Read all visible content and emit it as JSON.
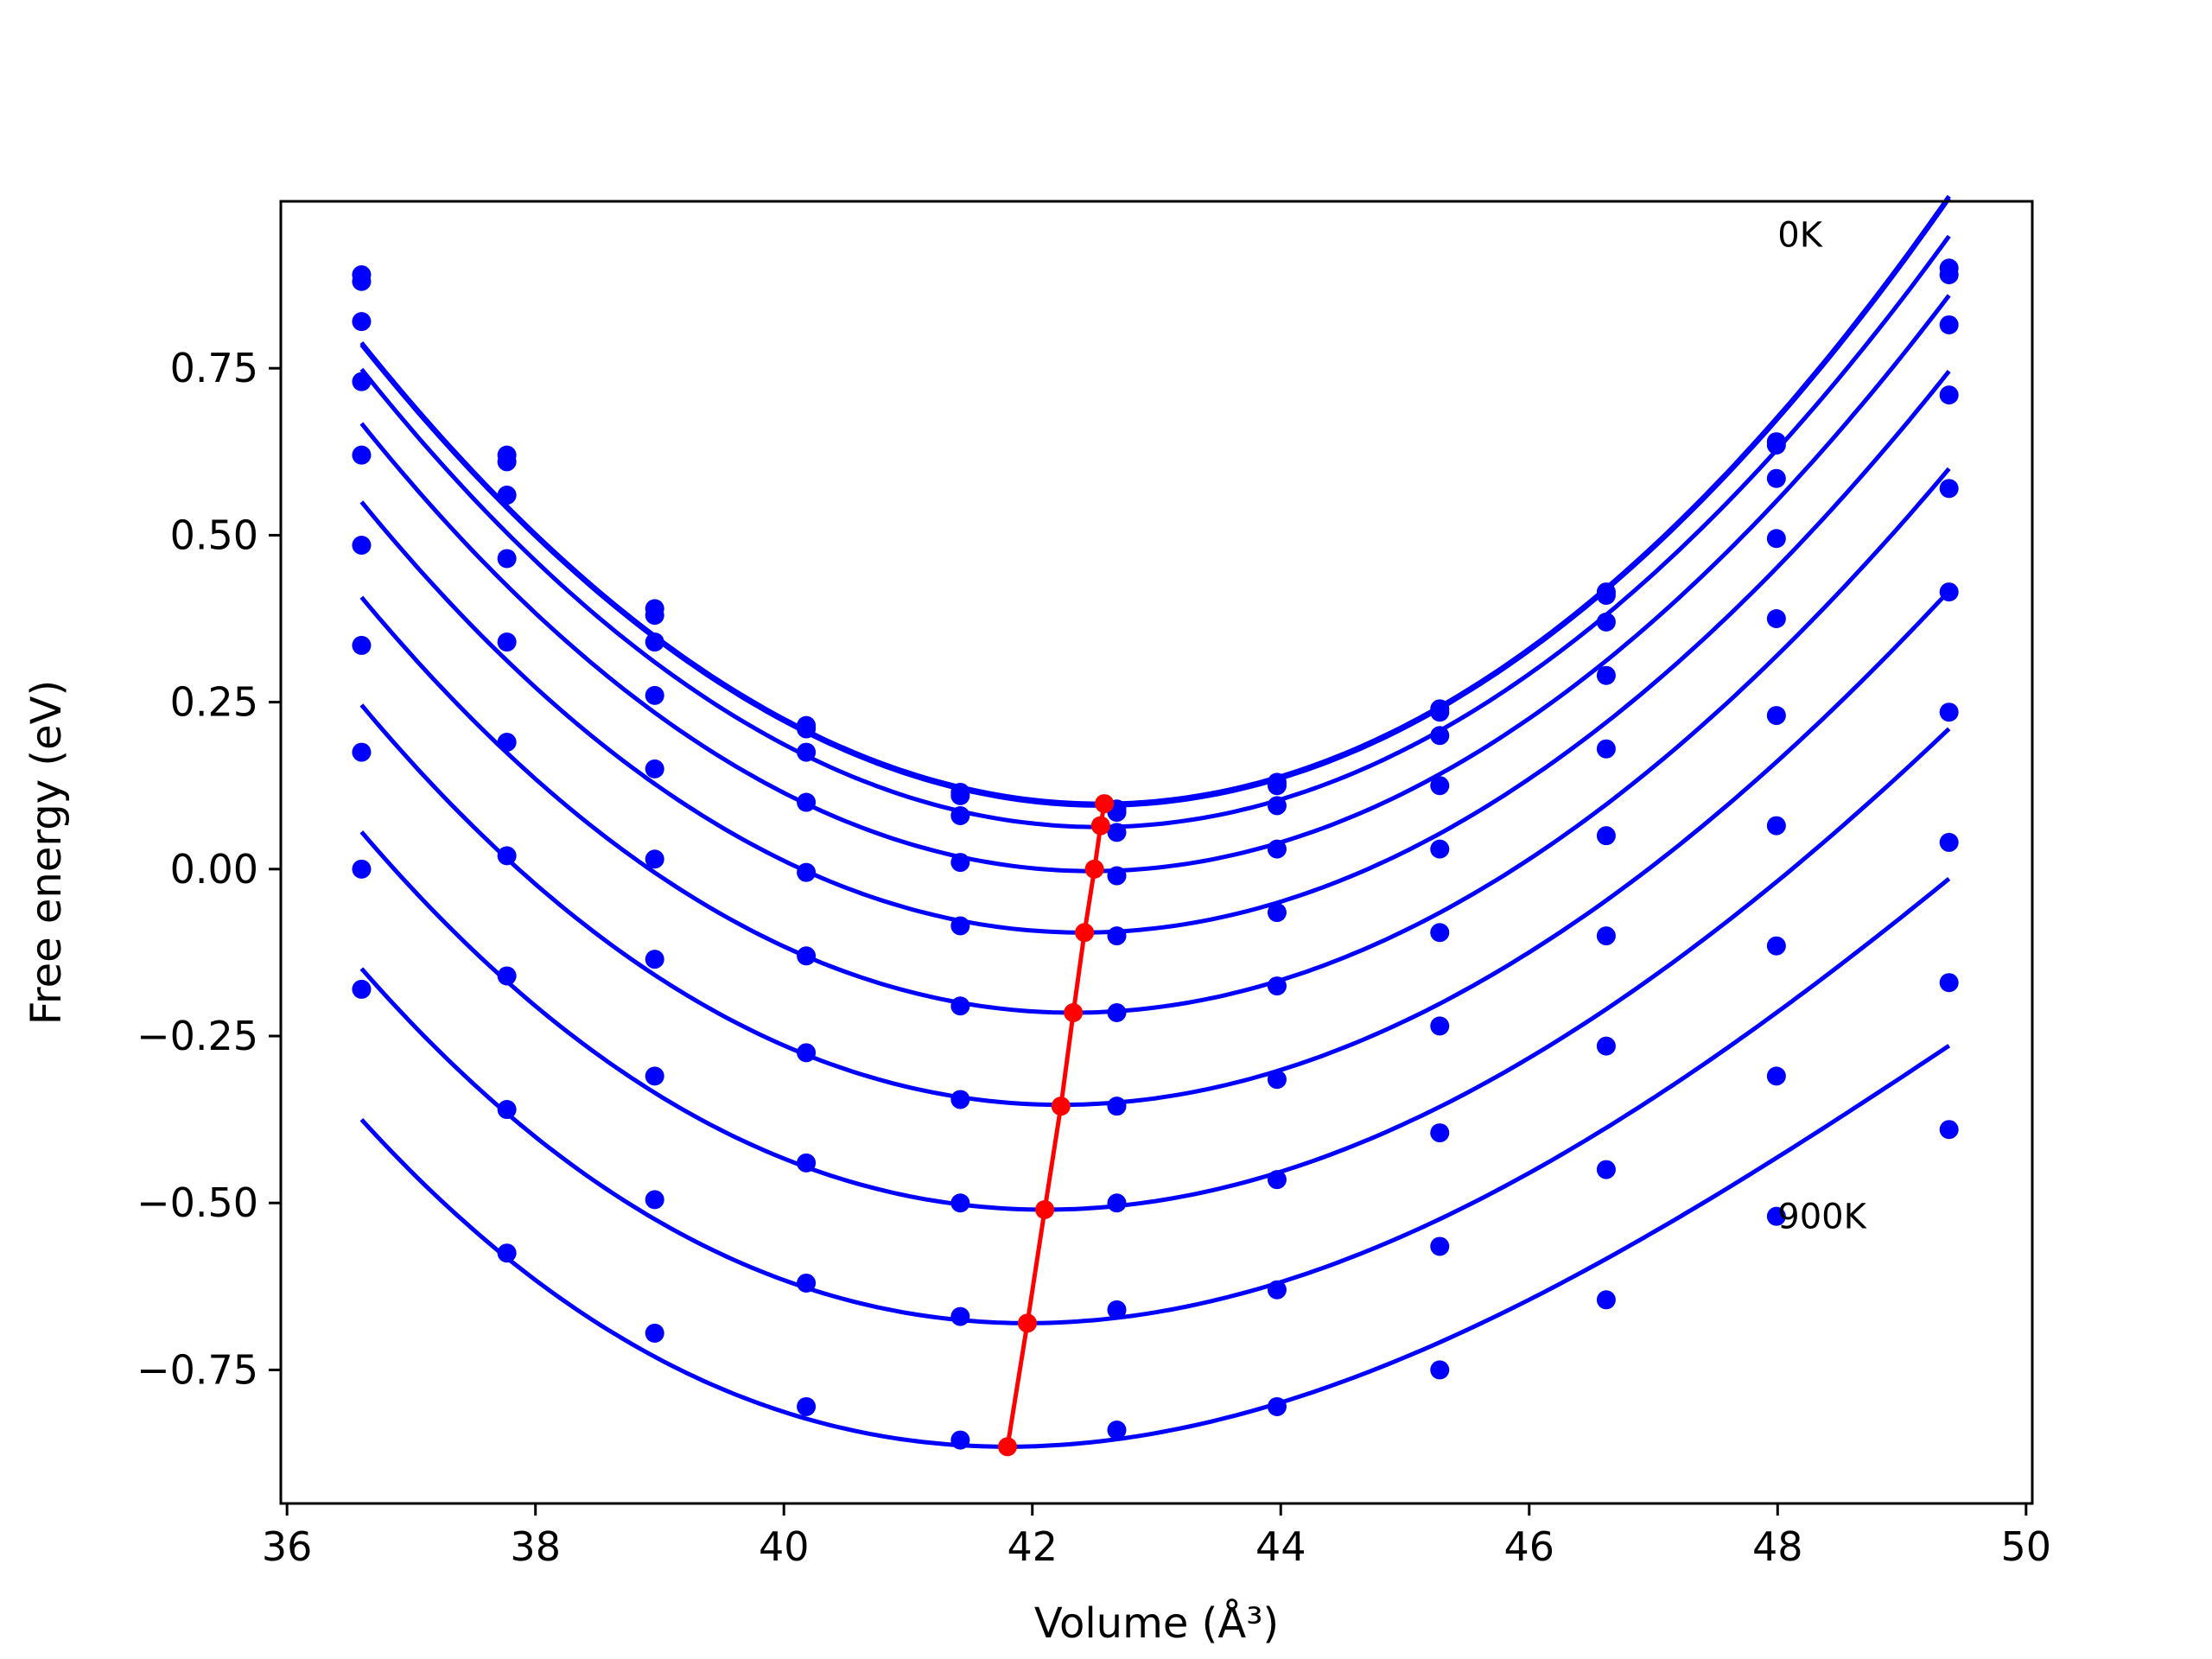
{
  "chart_data": {
    "type": "line",
    "title": "",
    "xlabel": "Volume (Å³)",
    "ylabel": "Free energy (eV)",
    "xlim": [
      35.95,
      50.05
    ],
    "ylim": [
      -0.95,
      1.0
    ],
    "xticks": [
      36,
      38,
      40,
      42,
      44,
      46,
      48,
      50
    ],
    "xtick_labels": [
      "36",
      "38",
      "40",
      "42",
      "44",
      "46",
      "48",
      "50"
    ],
    "yticks": [
      -0.75,
      -0.5,
      -0.25,
      0.0,
      0.25,
      0.5,
      0.75
    ],
    "ytick_labels": [
      "−0.75",
      "−0.50",
      "−0.25",
      "0.00",
      "0.25",
      "0.50",
      "0.75"
    ],
    "grid": false,
    "annotations": [
      {
        "text": "0K",
        "x": 48.0,
        "y": 0.95
      },
      {
        "text": "900K",
        "x": 48.0,
        "y": -0.52
      }
    ],
    "volumes": [
      36.6,
      37.77,
      38.96,
      40.18,
      41.42,
      42.68,
      43.97,
      45.28,
      46.62,
      47.99,
      49.38
    ],
    "series": [
      {
        "values": [
          0.89,
          0.62,
          0.39,
          0.215,
          0.115,
          0.09,
          0.13,
          0.24,
          0.415,
          0.64,
          0.9
        ],
        "fit": {
          "v0": 42.55,
          "f0": 0.098,
          "a": 0.0195,
          "b": 0.0,
          "c": 0.0
        }
      },
      {
        "values": [
          0.88,
          0.61,
          0.38,
          0.21,
          0.11,
          0.085,
          0.125,
          0.235,
          0.41,
          0.635,
          0.89
        ],
        "fit": {
          "v0": 42.55,
          "f0": 0.095,
          "a": 0.0195,
          "b": 0.0,
          "c": 0.0
        }
      },
      {
        "values": [
          0.82,
          0.56,
          0.34,
          0.175,
          0.08,
          0.055,
          0.095,
          0.2,
          0.37,
          0.585,
          0.815
        ],
        "fit": {
          "v0": 42.53,
          "f0": 0.063,
          "a": 0.0192,
          "b": -5e-05,
          "c": 0.0
        }
      },
      {
        "values": [
          0.73,
          0.465,
          0.26,
          0.1,
          0.01,
          -0.01,
          0.03,
          0.125,
          0.29,
          0.495,
          0.71
        ],
        "fit": {
          "v0": 42.48,
          "f0": -0.003,
          "a": 0.0188,
          "b": -0.0001,
          "c": 0.0
        }
      },
      {
        "values": [
          0.62,
          0.34,
          0.15,
          -0.005,
          -0.085,
          -0.1,
          -0.065,
          0.03,
          0.18,
          0.375,
          0.57
        ],
        "fit": {
          "v0": 42.4,
          "f0": -0.095,
          "a": 0.0183,
          "b": -0.00015,
          "c": 0.0
        }
      },
      {
        "values": [
          0.485,
          0.19,
          0.015,
          -0.13,
          -0.205,
          -0.215,
          -0.175,
          -0.095,
          0.05,
          0.23,
          0.415
        ],
        "fit": {
          "v0": 42.33,
          "f0": -0.215,
          "a": 0.0178,
          "b": -0.0002,
          "c": 0.0
        }
      },
      {
        "values": [
          0.335,
          0.02,
          -0.135,
          -0.275,
          -0.345,
          -0.355,
          -0.315,
          -0.235,
          -0.1,
          0.065,
          0.235
        ],
        "fit": {
          "v0": 42.23,
          "f0": -0.353,
          "a": 0.0172,
          "b": -0.0003,
          "c": 0.0
        }
      },
      {
        "values": [
          0.175,
          -0.16,
          -0.31,
          -0.44,
          -0.5,
          -0.5,
          -0.465,
          -0.395,
          -0.265,
          -0.115,
          0.04
        ],
        "fit": {
          "v0": 42.1,
          "f0": -0.51,
          "a": 0.0165,
          "b": -0.0004,
          "c": 0.0
        }
      },
      {
        "values": [
          0.0,
          -0.36,
          -0.495,
          -0.62,
          -0.67,
          -0.66,
          -0.63,
          -0.565,
          -0.45,
          -0.31,
          -0.17
        ],
        "fit": {
          "v0": 41.96,
          "f0": -0.68,
          "a": 0.0158,
          "b": -0.0005,
          "c": 0.0
        }
      },
      {
        "values": [
          -0.18,
          -0.575,
          -0.695,
          -0.805,
          -0.855,
          -0.84,
          -0.805,
          -0.75,
          -0.645,
          -0.52,
          -0.39
        ],
        "fit": {
          "v0": 41.8,
          "f0": -0.865,
          "a": 0.015,
          "b": -0.0006,
          "c": 0.0
        }
      }
    ],
    "minima": {
      "x": [
        42.58,
        42.55,
        42.5,
        42.42,
        42.33,
        42.23,
        42.1,
        41.96,
        41.8
      ],
      "y": [
        0.098,
        0.065,
        0.0,
        -0.095,
        -0.215,
        -0.355,
        -0.51,
        -0.68,
        -0.865
      ]
    },
    "colors": {
      "curves": "#0000ff",
      "minima": "#ff0000",
      "axes": "#000000"
    }
  }
}
